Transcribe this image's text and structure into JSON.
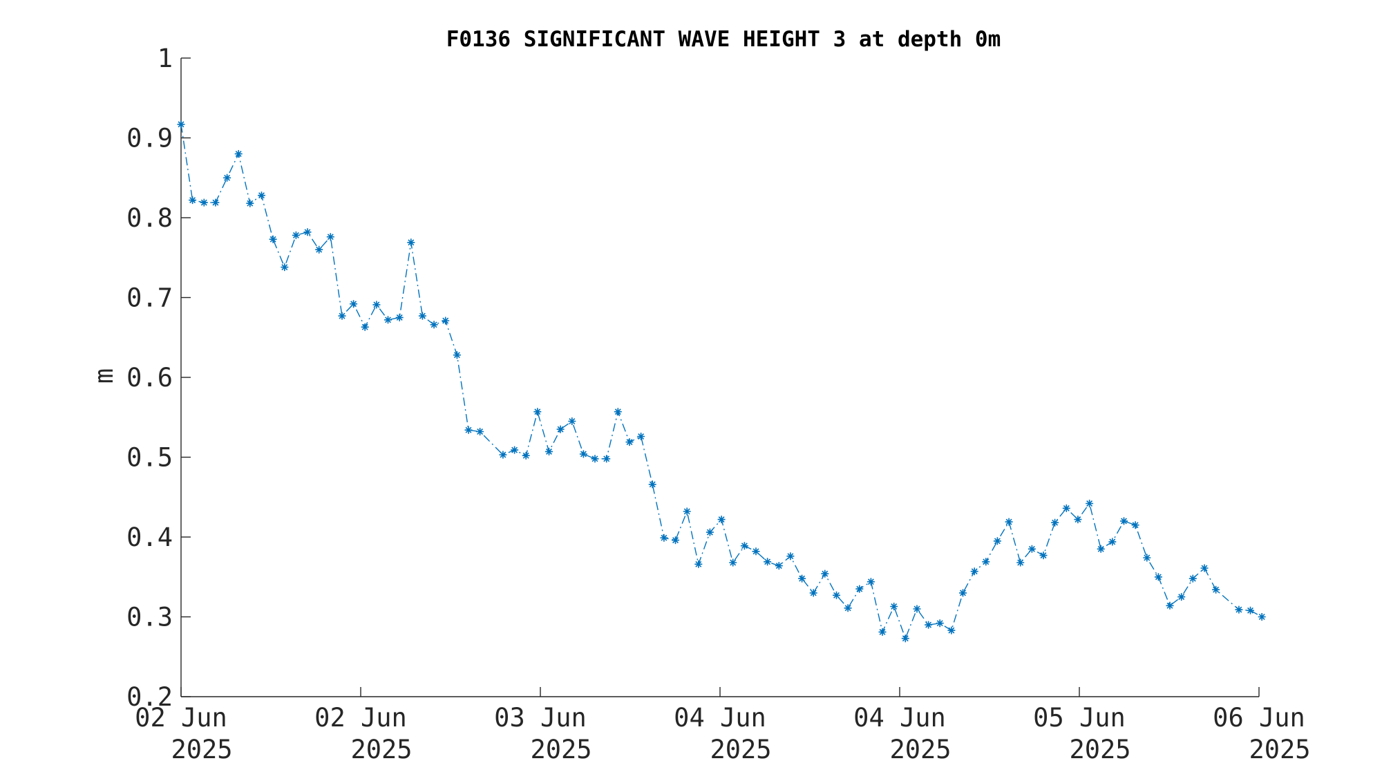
{
  "chart_data": {
    "type": "line",
    "title": "F0136 SIGNIFICANT WAVE HEIGHT 3 at depth 0m",
    "xlabel": "",
    "ylabel": "m",
    "ylim": [
      0.2,
      1.0
    ],
    "y_ticks": [
      "0.2",
      "0.3",
      "0.4",
      "0.5",
      "0.6",
      "0.7",
      "0.8",
      "0.9",
      "1"
    ],
    "x_ticks": [
      {
        "line1": "02 Jun",
        "line2": "2025"
      },
      {
        "line1": "02 Jun",
        "line2": "2025"
      },
      {
        "line1": "03 Jun",
        "line2": "2025"
      },
      {
        "line1": "04 Jun",
        "line2": "2025"
      },
      {
        "line1": "04 Jun",
        "line2": "2025"
      },
      {
        "line1": "05 Jun",
        "line2": "2025"
      },
      {
        "line1": "06 Jun",
        "line2": "2025"
      }
    ],
    "grid": false,
    "legend": "none",
    "series_color": "#0072BD",
    "series": [
      {
        "marker": "asterisk",
        "line_style": "dash-dot",
        "values": [
          0.917,
          0.822,
          0.819,
          0.819,
          0.85,
          0.88,
          0.818,
          0.828,
          0.773,
          0.738,
          0.778,
          0.782,
          0.76,
          0.776,
          0.677,
          0.692,
          0.663,
          0.691,
          0.672,
          0.675,
          0.769,
          0.677,
          0.666,
          0.671,
          0.628,
          0.534,
          0.532,
          null,
          0.503,
          0.509,
          0.502,
          0.557,
          0.507,
          0.535,
          0.545,
          0.504,
          0.498,
          0.498,
          0.557,
          0.519,
          0.526,
          0.466,
          0.399,
          0.396,
          0.432,
          0.366,
          0.406,
          0.422,
          0.368,
          0.389,
          0.382,
          0.369,
          0.364,
          0.376,
          0.348,
          0.33,
          0.354,
          0.327,
          0.311,
          0.335,
          0.344,
          0.281,
          0.313,
          0.273,
          0.31,
          0.29,
          0.292,
          0.283,
          0.33,
          0.357,
          0.369,
          0.395,
          0.419,
          0.368,
          0.385,
          0.377,
          0.418,
          0.436,
          0.422,
          0.442,
          0.385,
          0.394,
          0.42,
          0.415,
          0.374,
          0.35,
          0.314,
          0.325,
          0.348,
          0.361,
          0.334,
          null,
          0.309,
          0.308,
          0.3
        ]
      }
    ]
  }
}
